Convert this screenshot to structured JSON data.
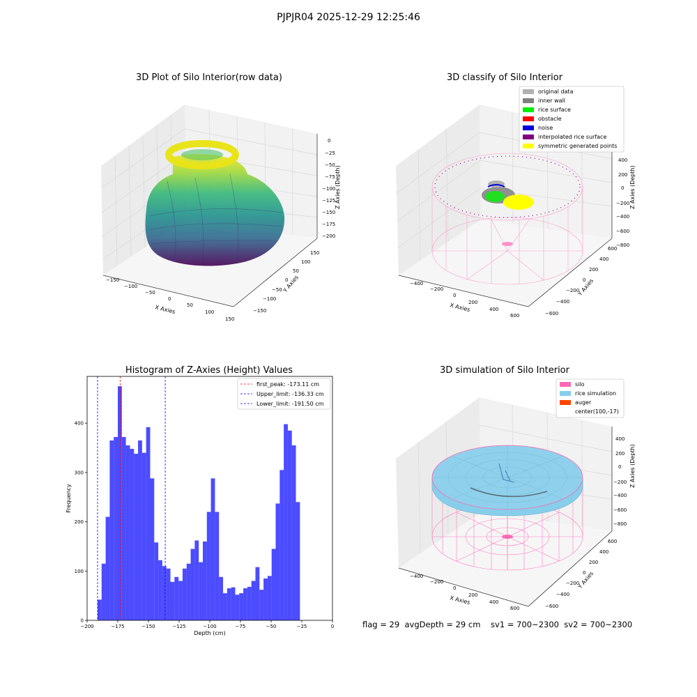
{
  "figure_title": "PJPJR04 2025-12-29 12:25:46",
  "panels": {
    "top_left": {
      "title": "3D Plot of Silo Interior(row data)",
      "xlabel": "X Axies",
      "ylabel": "Y Axies",
      "zlabel": "Z Axies (Depth)",
      "xticks": [
        "−150",
        "−100",
        "−50",
        "0",
        "50",
        "100",
        "150"
      ],
      "yticks": [
        "150",
        "100",
        "50",
        "0",
        "−50",
        "−100",
        "−150"
      ],
      "zticks": [
        "0",
        "−25",
        "−50",
        "−75",
        "−100",
        "−125",
        "−150",
        "−175",
        "−200"
      ]
    },
    "top_right": {
      "title": "3D classify of Silo Interior",
      "xlabel": "X Axies",
      "ylabel": "Y Axies",
      "zlabel": "Z Axies (Depth)",
      "xticks": [
        "−400",
        "−200",
        "0",
        "200",
        "400",
        "600"
      ],
      "yticks": [
        "600",
        "400",
        "200",
        "0",
        "−200",
        "−400",
        "−600"
      ],
      "zticks": [
        "400",
        "200",
        "0",
        "−200",
        "−400",
        "−600",
        "−800"
      ],
      "legend": [
        {
          "label": "original data",
          "color": "#b0b0b0"
        },
        {
          "label": "inner wall",
          "color": "#808080"
        },
        {
          "label": "rice surface",
          "color": "#00ee00"
        },
        {
          "label": "obstacle",
          "color": "#ff0000"
        },
        {
          "label": "noise",
          "color": "#0000dd"
        },
        {
          "label": "interpolated rice surface",
          "color": "#800080"
        },
        {
          "label": "symmetric generated points",
          "color": "#ffff00"
        }
      ]
    },
    "bottom_right": {
      "title": "3D simulation of Silo Interior",
      "xlabel": "X Axies",
      "ylabel": "Y Axies",
      "zlabel": "Z Axies (Depth)",
      "xticks": [
        "−400",
        "−200",
        "0",
        "200",
        "400",
        "600"
      ],
      "yticks": [
        "600",
        "400",
        "200",
        "0",
        "−200",
        "−400",
        "−600"
      ],
      "zticks": [
        "400",
        "200",
        "0",
        "−200",
        "−400",
        "−600",
        "−800"
      ],
      "legend": [
        {
          "label": "silo",
          "color": "#ff69b4"
        },
        {
          "label": "rice simulation",
          "color": "#87ceeb"
        },
        {
          "label": "auger",
          "color": "#ff4500"
        },
        {
          "label": "center(100,-17)",
          "color": ""
        }
      ]
    }
  },
  "chart_data": {
    "type": "bar",
    "title": "Histogram of Z-Axies (Height) Values",
    "xlabel": "Depth (cm)",
    "ylabel": "Frequency",
    "xlim": [
      -200,
      0
    ],
    "ylim": [
      0,
      495
    ],
    "bar_color": "#0000ff",
    "bin_start": -191.5,
    "bin_width": 3.3,
    "values": [
      42,
      115,
      210,
      365,
      372,
      475,
      372,
      355,
      348,
      338,
      365,
      340,
      392,
      288,
      158,
      122,
      110,
      105,
      78,
      88,
      80,
      105,
      115,
      145,
      162,
      118,
      160,
      220,
      288,
      220,
      88,
      55,
      65,
      67,
      52,
      55,
      65,
      68,
      80,
      108,
      62,
      85,
      90,
      145,
      237,
      305,
      398,
      385,
      355,
      240
    ],
    "xticks": [
      -200,
      -175,
      -150,
      -125,
      -100,
      -75,
      -50,
      -25,
      0
    ],
    "yticks": [
      0,
      100,
      200,
      300,
      400
    ],
    "vlines": [
      {
        "label": "first_peak: -173.11 cm",
        "x": -173.11,
        "color": "#ff0000"
      },
      {
        "label": "Upper_limit: -136.33 cm",
        "x": -136.33,
        "color": "#0000ff"
      },
      {
        "label": "Lower_limit: -191.50 cm",
        "x": -191.5,
        "color": "#0000ff"
      }
    ],
    "legend_position": "upper right"
  },
  "footer": {
    "text": "flag = 29  avgDepth = 29 cm    sv1 = 700~2300  sv2 = 700~2300"
  }
}
